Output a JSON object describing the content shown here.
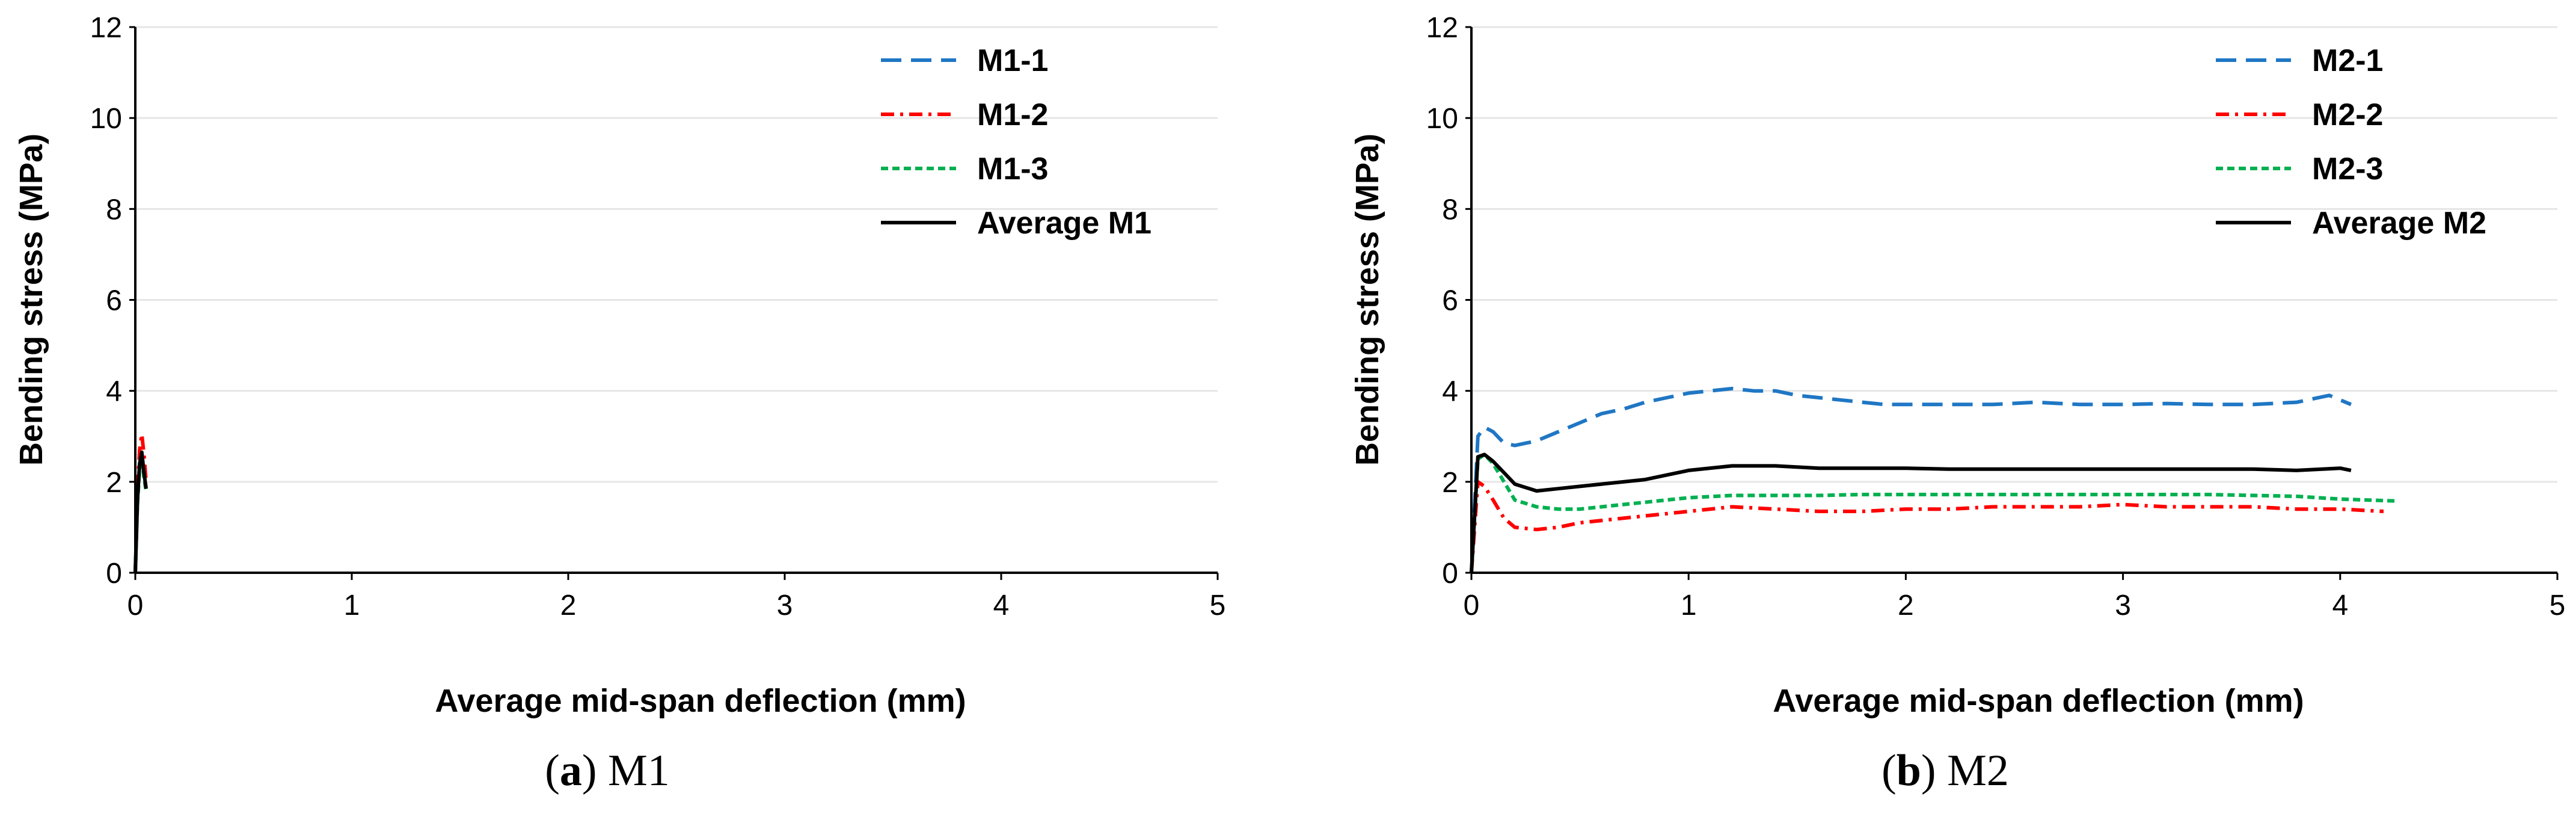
{
  "colors": {
    "series1": "#1f77c4",
    "series2": "#ff0000",
    "series3": "#00b050",
    "average": "#000000",
    "gridline": "#e6e6e6",
    "axis": "#000000"
  },
  "chart_data": [
    {
      "type": "line",
      "panel_tag": "a",
      "caption": "M1",
      "xlabel": "Average mid-span deflection (mm)",
      "ylabel": "Bending stress (MPa)",
      "xlim": [
        0,
        5
      ],
      "ylim": [
        0,
        12
      ],
      "xticks": [
        "0",
        "1",
        "2",
        "3",
        "4",
        "5"
      ],
      "yticks": [
        "0",
        "2",
        "4",
        "6",
        "8",
        "10",
        "12"
      ],
      "grid": "horizontal",
      "legend_position": "top-right",
      "series": [
        {
          "name": "M1-1",
          "style": "long-dash",
          "color_key": "series1",
          "x": [
            0,
            0.01,
            0.02,
            0.03,
            0.04,
            0.05
          ],
          "y": [
            0,
            1.6,
            2.4,
            2.6,
            2.2,
            1.9
          ]
        },
        {
          "name": "M1-2",
          "style": "dash-dot",
          "color_key": "series2",
          "x": [
            0,
            0.01,
            0.02,
            0.03,
            0.04,
            0.05
          ],
          "y": [
            0,
            1.8,
            2.7,
            3.05,
            2.6,
            2.0
          ]
        },
        {
          "name": "M1-3",
          "style": "short-dash",
          "color_key": "series3",
          "x": [
            0,
            0.01,
            0.02,
            0.03,
            0.04,
            0.05
          ],
          "y": [
            0,
            1.5,
            2.3,
            2.5,
            2.1,
            1.8
          ]
        },
        {
          "name": "Average M1",
          "style": "solid",
          "color_key": "average",
          "x": [
            0,
            0.01,
            0.02,
            0.03,
            0.04,
            0.05
          ],
          "y": [
            0,
            1.6,
            2.4,
            2.65,
            2.2,
            1.85
          ]
        }
      ]
    },
    {
      "type": "line",
      "panel_tag": "b",
      "caption": "M2",
      "xlabel": "Average mid-span deflection (mm)",
      "ylabel": "Bending stress (MPa)",
      "xlim": [
        0,
        5
      ],
      "ylim": [
        0,
        12
      ],
      "xticks": [
        "0",
        "1",
        "2",
        "3",
        "4",
        "5"
      ],
      "yticks": [
        "0",
        "2",
        "4",
        "6",
        "8",
        "10",
        "12"
      ],
      "grid": "horizontal",
      "legend_position": "top-right",
      "series": [
        {
          "name": "M2-1",
          "style": "long-dash",
          "color_key": "series1",
          "x": [
            0,
            0.03,
            0.06,
            0.1,
            0.15,
            0.2,
            0.3,
            0.4,
            0.5,
            0.6,
            0.7,
            0.8,
            0.9,
            1.0,
            1.1,
            1.2,
            1.3,
            1.4,
            1.5,
            1.6,
            1.7,
            1.8,
            1.9,
            2.0,
            2.2,
            2.4,
            2.6,
            2.8,
            3.0,
            3.2,
            3.4,
            3.6,
            3.8,
            3.95,
            4.05
          ],
          "y": [
            0,
            3.0,
            3.2,
            3.1,
            2.85,
            2.8,
            2.9,
            3.1,
            3.3,
            3.5,
            3.6,
            3.75,
            3.85,
            3.95,
            4.0,
            4.05,
            4.0,
            4.0,
            3.9,
            3.85,
            3.8,
            3.75,
            3.7,
            3.7,
            3.7,
            3.7,
            3.75,
            3.7,
            3.7,
            3.72,
            3.7,
            3.7,
            3.75,
            3.9,
            3.7
          ]
        },
        {
          "name": "M2-2",
          "style": "dash-dot",
          "color_key": "series2",
          "x": [
            0,
            0.03,
            0.06,
            0.1,
            0.15,
            0.2,
            0.3,
            0.4,
            0.5,
            0.6,
            0.8,
            1.0,
            1.2,
            1.4,
            1.6,
            1.8,
            2.0,
            2.2,
            2.4,
            2.6,
            2.8,
            3.0,
            3.2,
            3.4,
            3.6,
            3.8,
            4.0,
            4.2
          ],
          "y": [
            0,
            2.0,
            1.9,
            1.6,
            1.2,
            1.0,
            0.95,
            1.0,
            1.1,
            1.15,
            1.25,
            1.35,
            1.45,
            1.4,
            1.35,
            1.35,
            1.4,
            1.4,
            1.45,
            1.45,
            1.45,
            1.5,
            1.45,
            1.45,
            1.45,
            1.4,
            1.4,
            1.35
          ]
        },
        {
          "name": "M2-3",
          "style": "short-dash",
          "color_key": "series3",
          "x": [
            0,
            0.03,
            0.06,
            0.1,
            0.15,
            0.2,
            0.3,
            0.4,
            0.5,
            0.6,
            0.8,
            1.0,
            1.2,
            1.4,
            1.6,
            1.8,
            2.0,
            2.2,
            2.4,
            2.6,
            2.8,
            3.0,
            3.2,
            3.4,
            3.6,
            3.8,
            4.0,
            4.25
          ],
          "y": [
            0,
            2.5,
            2.6,
            2.4,
            2.0,
            1.6,
            1.45,
            1.4,
            1.4,
            1.45,
            1.55,
            1.65,
            1.7,
            1.7,
            1.7,
            1.72,
            1.72,
            1.72,
            1.72,
            1.72,
            1.72,
            1.72,
            1.72,
            1.72,
            1.7,
            1.68,
            1.62,
            1.58
          ]
        },
        {
          "name": "Average M2",
          "style": "solid",
          "color_key": "average",
          "x": [
            0,
            0.03,
            0.06,
            0.1,
            0.15,
            0.2,
            0.3,
            0.4,
            0.5,
            0.6,
            0.8,
            1.0,
            1.2,
            1.4,
            1.6,
            1.8,
            2.0,
            2.2,
            2.4,
            2.6,
            2.8,
            3.0,
            3.2,
            3.4,
            3.6,
            3.8,
            4.0,
            4.05
          ],
          "y": [
            0,
            2.55,
            2.6,
            2.45,
            2.2,
            1.95,
            1.8,
            1.85,
            1.9,
            1.95,
            2.05,
            2.25,
            2.35,
            2.35,
            2.3,
            2.3,
            2.3,
            2.28,
            2.28,
            2.28,
            2.28,
            2.28,
            2.28,
            2.28,
            2.28,
            2.25,
            2.3,
            2.25
          ]
        }
      ]
    }
  ]
}
